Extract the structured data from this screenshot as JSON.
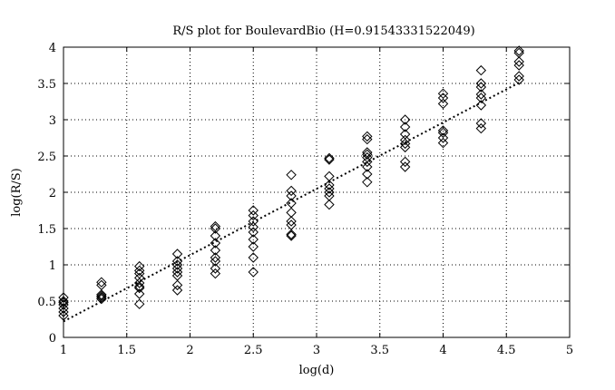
{
  "chart_data": {
    "type": "scatter",
    "title": "R/S plot for BoulevardBio (H=0.91543331522049)",
    "xlabel": "log(d)",
    "ylabel": "log(R/S)",
    "xlim": [
      1,
      5
    ],
    "ylim": [
      0,
      4
    ],
    "xticks": [
      1,
      1.5,
      2,
      2.5,
      3,
      3.5,
      4,
      4.5,
      5
    ],
    "yticks": [
      0,
      0.5,
      1,
      1.5,
      2,
      2.5,
      3,
      3.5,
      4
    ],
    "xtick_labels": [
      "1",
      "1.5",
      "2",
      "2.5",
      "3",
      "3.5",
      "4",
      "4.5",
      "5"
    ],
    "ytick_labels": [
      "0",
      "0.5",
      "1",
      "1.5",
      "2",
      "2.5",
      "3",
      "3.5",
      "4"
    ],
    "grid": true,
    "marker": "diamond",
    "series": [
      {
        "points": [
          [
            1.0,
            0.3
          ],
          [
            1.0,
            0.35
          ],
          [
            1.0,
            0.4
          ],
          [
            1.0,
            0.45
          ],
          [
            1.0,
            0.48
          ],
          [
            1.0,
            0.5
          ],
          [
            1.0,
            0.55
          ],
          [
            1.3,
            0.53
          ],
          [
            1.3,
            0.55
          ],
          [
            1.3,
            0.57
          ],
          [
            1.3,
            0.59
          ],
          [
            1.3,
            0.72
          ],
          [
            1.3,
            0.76
          ],
          [
            1.6,
            0.46
          ],
          [
            1.6,
            0.6
          ],
          [
            1.6,
            0.68
          ],
          [
            1.6,
            0.7
          ],
          [
            1.6,
            0.75
          ],
          [
            1.6,
            0.82
          ],
          [
            1.6,
            0.88
          ],
          [
            1.6,
            0.92
          ],
          [
            1.6,
            0.98
          ],
          [
            1.9,
            0.65
          ],
          [
            1.9,
            0.72
          ],
          [
            1.9,
            0.85
          ],
          [
            1.9,
            0.9
          ],
          [
            1.9,
            0.95
          ],
          [
            1.9,
            1.0
          ],
          [
            1.9,
            1.05
          ],
          [
            1.9,
            1.15
          ],
          [
            2.2,
            0.88
          ],
          [
            2.2,
            0.95
          ],
          [
            2.2,
            1.05
          ],
          [
            2.2,
            1.1
          ],
          [
            2.2,
            1.2
          ],
          [
            2.2,
            1.3
          ],
          [
            2.2,
            1.4
          ],
          [
            2.2,
            1.5
          ],
          [
            2.2,
            1.53
          ],
          [
            2.5,
            0.9
          ],
          [
            2.5,
            1.1
          ],
          [
            2.5,
            1.25
          ],
          [
            2.5,
            1.35
          ],
          [
            2.5,
            1.45
          ],
          [
            2.5,
            1.52
          ],
          [
            2.5,
            1.6
          ],
          [
            2.5,
            1.68
          ],
          [
            2.5,
            1.75
          ],
          [
            2.8,
            1.4
          ],
          [
            2.8,
            1.42
          ],
          [
            2.8,
            1.55
          ],
          [
            2.8,
            1.6
          ],
          [
            2.8,
            1.72
          ],
          [
            2.8,
            1.85
          ],
          [
            2.8,
            1.95
          ],
          [
            2.8,
            2.02
          ],
          [
            2.8,
            2.24
          ],
          [
            3.1,
            1.83
          ],
          [
            3.1,
            1.95
          ],
          [
            3.1,
            2.0
          ],
          [
            3.1,
            2.05
          ],
          [
            3.1,
            2.1
          ],
          [
            3.1,
            2.22
          ],
          [
            3.1,
            2.45
          ],
          [
            3.1,
            2.47
          ],
          [
            3.4,
            2.14
          ],
          [
            3.4,
            2.25
          ],
          [
            3.4,
            2.35
          ],
          [
            3.4,
            2.42
          ],
          [
            3.4,
            2.48
          ],
          [
            3.4,
            2.52
          ],
          [
            3.4,
            2.55
          ],
          [
            3.4,
            2.73
          ],
          [
            3.4,
            2.77
          ],
          [
            3.7,
            2.35
          ],
          [
            3.7,
            2.42
          ],
          [
            3.7,
            2.62
          ],
          [
            3.7,
            2.67
          ],
          [
            3.7,
            2.72
          ],
          [
            3.7,
            2.8
          ],
          [
            3.7,
            2.9
          ],
          [
            3.7,
            3.0
          ],
          [
            4.0,
            2.68
          ],
          [
            4.0,
            2.75
          ],
          [
            4.0,
            2.82
          ],
          [
            4.0,
            2.85
          ],
          [
            4.0,
            3.22
          ],
          [
            4.0,
            3.3
          ],
          [
            4.0,
            3.36
          ],
          [
            4.3,
            2.88
          ],
          [
            4.3,
            2.95
          ],
          [
            4.3,
            3.2
          ],
          [
            4.3,
            3.3
          ],
          [
            4.3,
            3.35
          ],
          [
            4.3,
            3.45
          ],
          [
            4.3,
            3.5
          ],
          [
            4.3,
            3.68
          ],
          [
            4.6,
            3.55
          ],
          [
            4.6,
            3.6
          ],
          [
            4.6,
            3.75
          ],
          [
            4.6,
            3.8
          ],
          [
            4.6,
            3.92
          ],
          [
            4.6,
            3.95
          ]
        ]
      }
    ],
    "fit_line": {
      "x": [
        1,
        4.6
      ],
      "y": [
        0.22,
        3.51
      ],
      "style": "dotted"
    }
  }
}
